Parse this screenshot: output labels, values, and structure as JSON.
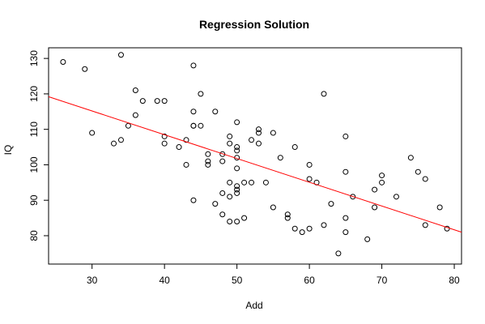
{
  "chart_data": {
    "type": "scatter",
    "title": "Regression Solution",
    "xlabel": "Add",
    "ylabel": "IQ",
    "xlim": [
      24,
      81
    ],
    "ylim": [
      72,
      133
    ],
    "xticks": [
      "30",
      "40",
      "50",
      "60",
      "70",
      "80"
    ],
    "yticks": [
      "80",
      "90",
      "100",
      "110",
      "120",
      "130"
    ],
    "grid": false,
    "legend": "none",
    "colors": {
      "points": "#000000",
      "regression_line": "#ff0000",
      "frame": "#000000"
    },
    "series": [
      {
        "marker": "open-circle",
        "points": [
          [
            26,
            129
          ],
          [
            29,
            127
          ],
          [
            30,
            109
          ],
          [
            33,
            106
          ],
          [
            34,
            131
          ],
          [
            34,
            107
          ],
          [
            35,
            111
          ],
          [
            36,
            121
          ],
          [
            36,
            114
          ],
          [
            37,
            118
          ],
          [
            39,
            118
          ],
          [
            40,
            118
          ],
          [
            40,
            108
          ],
          [
            40,
            106
          ],
          [
            42,
            105
          ],
          [
            43,
            107
          ],
          [
            43,
            100
          ],
          [
            44,
            128
          ],
          [
            44,
            115
          ],
          [
            44,
            111
          ],
          [
            44,
            111
          ],
          [
            44,
            90
          ],
          [
            45,
            120
          ],
          [
            45,
            111
          ],
          [
            46,
            103
          ],
          [
            46,
            101
          ],
          [
            46,
            100
          ],
          [
            47,
            115
          ],
          [
            47,
            89
          ],
          [
            48,
            103
          ],
          [
            48,
            101
          ],
          [
            48,
            92
          ],
          [
            48,
            86
          ],
          [
            49,
            108
          ],
          [
            49,
            106
          ],
          [
            49,
            95
          ],
          [
            49,
            91
          ],
          [
            49,
            84
          ],
          [
            50,
            112
          ],
          [
            50,
            105
          ],
          [
            50,
            104
          ],
          [
            50,
            102
          ],
          [
            50,
            99
          ],
          [
            50,
            94
          ],
          [
            50,
            93
          ],
          [
            50,
            92
          ],
          [
            50,
            84
          ],
          [
            51,
            95
          ],
          [
            51,
            85
          ],
          [
            52,
            107
          ],
          [
            52,
            95
          ],
          [
            53,
            110
          ],
          [
            53,
            109
          ],
          [
            53,
            106
          ],
          [
            54,
            95
          ],
          [
            55,
            109
          ],
          [
            55,
            88
          ],
          [
            56,
            102
          ],
          [
            57,
            86
          ],
          [
            57,
            85
          ],
          [
            58,
            105
          ],
          [
            58,
            82
          ],
          [
            59,
            81
          ],
          [
            60,
            100
          ],
          [
            60,
            96
          ],
          [
            60,
            82
          ],
          [
            61,
            95
          ],
          [
            62,
            120
          ],
          [
            62,
            83
          ],
          [
            63,
            89
          ],
          [
            64,
            75
          ],
          [
            65,
            108
          ],
          [
            65,
            98
          ],
          [
            65,
            85
          ],
          [
            65,
            81
          ],
          [
            66,
            91
          ],
          [
            68,
            79
          ],
          [
            69,
            93
          ],
          [
            69,
            88
          ],
          [
            70,
            97
          ],
          [
            70,
            95
          ],
          [
            72,
            91
          ],
          [
            74,
            102
          ],
          [
            75,
            98
          ],
          [
            76,
            96
          ],
          [
            76,
            83
          ],
          [
            78,
            88
          ],
          [
            79,
            82
          ]
        ]
      }
    ],
    "regression_line": {
      "x": [
        24,
        81
      ],
      "y": [
        119.2,
        81.0
      ]
    }
  }
}
